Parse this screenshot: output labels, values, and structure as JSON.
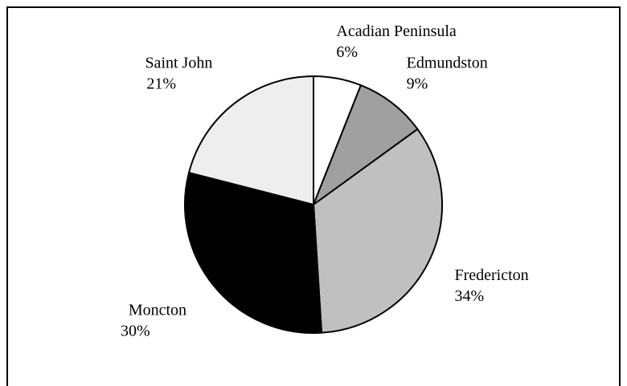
{
  "chart_data": {
    "type": "pie",
    "categories": [
      "Acadian Peninsula",
      "Edmundston",
      "Fredericton",
      "Moncton",
      "Saint John"
    ],
    "values": [
      6,
      9,
      34,
      30,
      21
    ],
    "value_labels": [
      "6%",
      "9%",
      "34%",
      "30%",
      "21%"
    ],
    "colors": [
      "#ffffff",
      "#a0a0a0",
      "#c0c0c0",
      "#000000",
      "#eeeeee"
    ]
  }
}
